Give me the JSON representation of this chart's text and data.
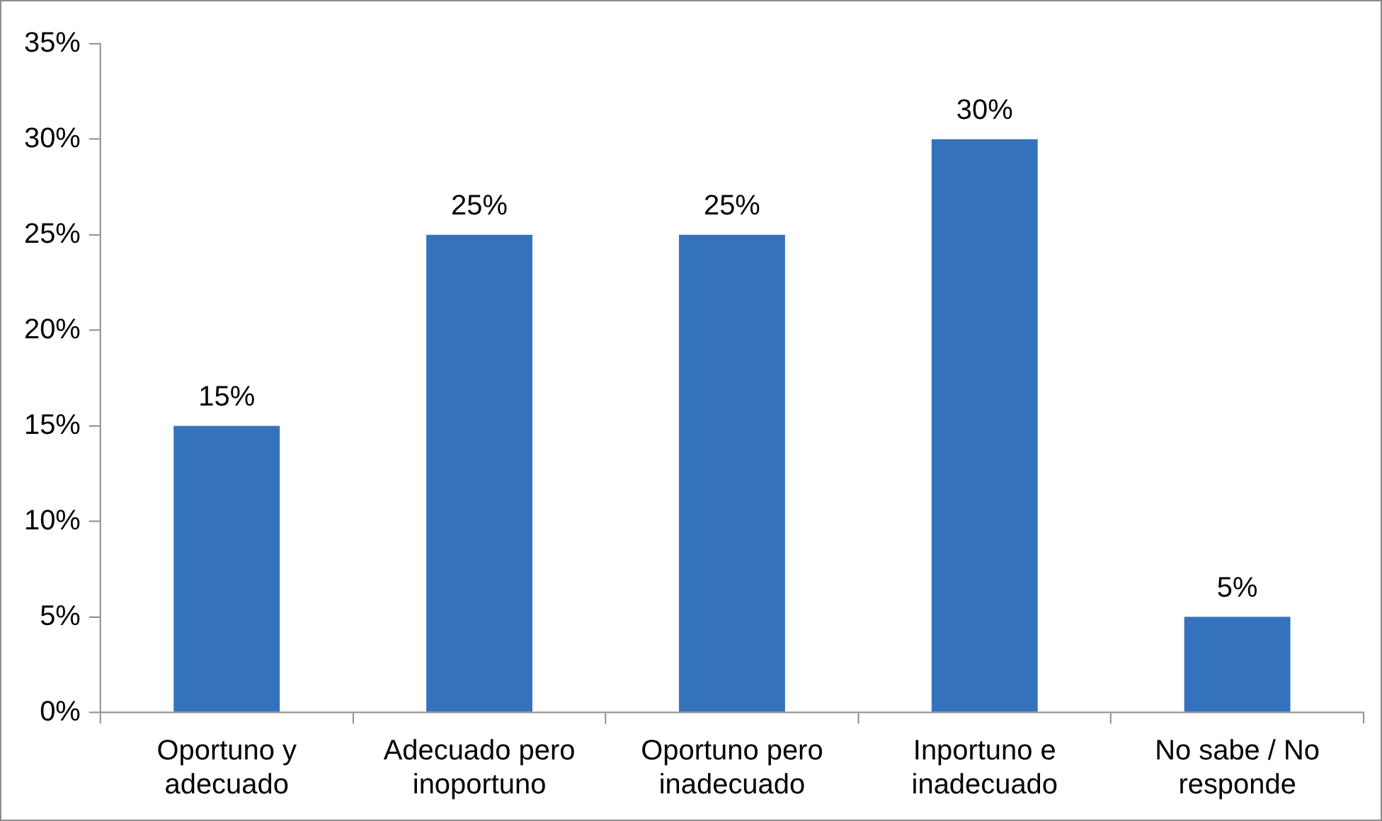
{
  "chart_data": {
    "type": "bar",
    "categories": [
      "Oportuno y adecuado",
      "Adecuado pero inoportuno",
      "Oportuno pero inadecuado",
      "Inportuno e inadecuado",
      "No sabe / No responde"
    ],
    "values": [
      15,
      25,
      25,
      30,
      5
    ],
    "value_labels": [
      "15%",
      "25%",
      "25%",
      "30%",
      "5%"
    ],
    "color": "#3572be",
    "ylim": [
      0,
      35
    ],
    "yticks": [
      {
        "value": 0,
        "label": "0%"
      },
      {
        "value": 5,
        "label": "5%"
      },
      {
        "value": 10,
        "label": "10%"
      },
      {
        "value": 15,
        "label": "15%"
      },
      {
        "value": 20,
        "label": "20%"
      },
      {
        "value": 25,
        "label": "25%"
      },
      {
        "value": 30,
        "label": "30%"
      },
      {
        "value": 35,
        "label": "35%"
      }
    ],
    "grid": false,
    "legend": false
  }
}
